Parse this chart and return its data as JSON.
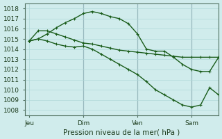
{
  "xlabel": "Pression niveau de la mer( hPa )",
  "bg_color": "#d0ecec",
  "grid_color": "#b0d8d8",
  "line_color": "#1a5c1a",
  "vline_color": "#607080",
  "xtick_labels": [
    "Jeu",
    "Dim",
    "Ven",
    "Sam"
  ],
  "xtick_positions": [
    1,
    13,
    25,
    37
  ],
  "ytick_labels": [
    "1008",
    "1009",
    "1010",
    "1011",
    "1012",
    "1013",
    "1014",
    "1015",
    "1016",
    "1017",
    "1018"
  ],
  "ylim": [
    1007.5,
    1018.5
  ],
  "xlim": [
    0,
    43
  ],
  "series": [
    {
      "x": [
        1,
        3,
        5,
        7,
        9,
        11,
        13,
        15,
        17,
        19,
        21,
        23,
        25,
        27,
        29,
        31,
        33,
        35,
        37,
        39,
        41,
        43
      ],
      "y": [
        1014.8,
        1015.8,
        1015.8,
        1015.5,
        1015.2,
        1014.9,
        1014.6,
        1014.5,
        1014.3,
        1014.1,
        1013.9,
        1013.8,
        1013.7,
        1013.6,
        1013.5,
        1013.4,
        1013.3,
        1013.2,
        1013.2,
        1013.2,
        1013.2,
        1013.2
      ]
    },
    {
      "x": [
        1,
        3,
        5,
        7,
        9,
        11,
        13,
        15,
        17,
        19,
        21,
        23,
        25,
        27,
        29,
        31,
        33,
        35,
        37,
        39,
        41,
        43
      ],
      "y": [
        1014.8,
        1015.0,
        1015.5,
        1016.1,
        1016.6,
        1017.0,
        1017.5,
        1017.7,
        1017.5,
        1017.2,
        1017.0,
        1016.5,
        1015.5,
        1014.0,
        1013.8,
        1013.8,
        1013.2,
        1012.5,
        1012.0,
        1011.8,
        1011.8,
        1013.2
      ]
    },
    {
      "x": [
        1,
        3,
        5,
        7,
        9,
        11,
        13,
        15,
        17,
        19,
        21,
        23,
        25,
        27,
        29,
        31,
        33,
        35,
        37,
        39,
        41,
        43
      ],
      "y": [
        1014.8,
        1015.0,
        1014.8,
        1014.5,
        1014.3,
        1014.2,
        1014.3,
        1014.0,
        1013.5,
        1013.0,
        1012.5,
        1012.0,
        1011.5,
        1010.8,
        1010.0,
        1009.5,
        1009.0,
        1008.5,
        1008.3,
        1008.5,
        1010.2,
        1009.5
      ]
    }
  ],
  "vline_positions": [
    13,
    25,
    37
  ],
  "marker_size": 2.0,
  "line_width": 1.0
}
